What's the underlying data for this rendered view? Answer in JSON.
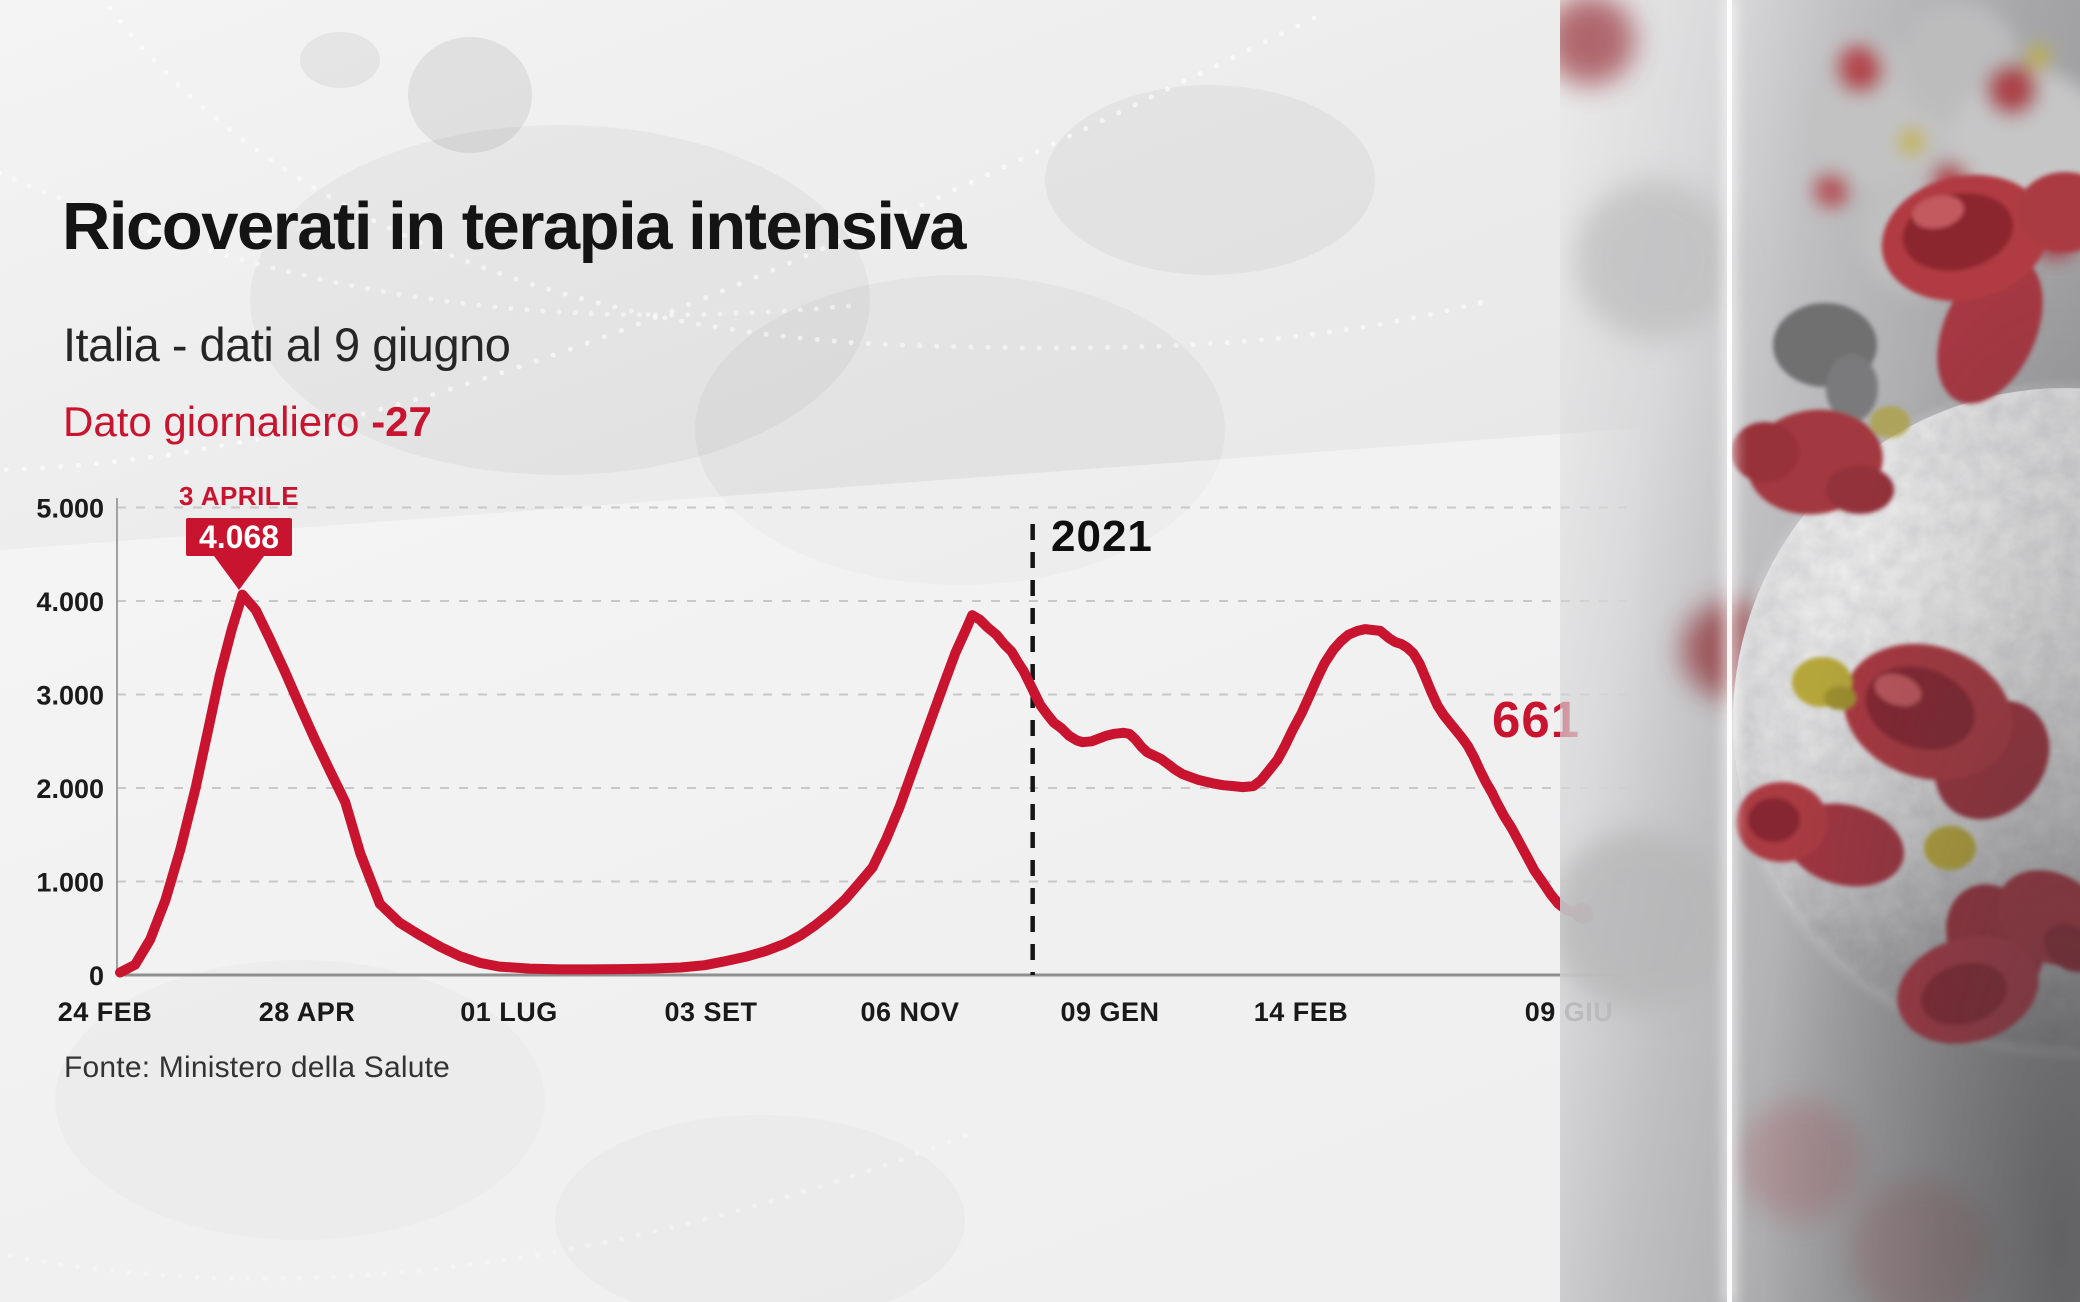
{
  "header": {
    "title": "Ricoverati in terapia intensiva",
    "subtitle": "Italia - dati al 9 giugno",
    "daily_label": "Dato giornaliero",
    "daily_value": "-27"
  },
  "footer": {
    "source": "Fonte: Ministero della Salute"
  },
  "colors": {
    "red": "#C9142F",
    "text_dark": "#141414",
    "grid": "#c8c8c8",
    "axis": "#8f8f8f"
  },
  "decor": {
    "virus_image_name": "coronavirus-3d-render",
    "background_map_name": "world-map-watermark",
    "background_lines_name": "dotted-network-arcs"
  },
  "chart_data": {
    "type": "line",
    "title": "Ricoverati in terapia intensiva",
    "xlabel": "",
    "ylabel": "",
    "ylim": [
      0,
      5000
    ],
    "grid": "dashed-horizontal",
    "legend_position": "none",
    "y_tick_labels": [
      "0",
      "1.000",
      "2.000",
      "3.000",
      "4.000",
      "5.000"
    ],
    "y_tick_values": [
      0,
      1000,
      2000,
      3000,
      4000,
      5000
    ],
    "x_tick_labels": [
      "24 FEB",
      "28 APR",
      "01 LUG",
      "03 SET",
      "06 NOV",
      "09 GEN",
      "14 FEB",
      "09 GIU"
    ],
    "annotations": {
      "peak_date_label": "3 APRILE",
      "peak_value_label": "4.068",
      "peak_value": 4068,
      "year_divider_label": "2021",
      "year_divider_x_frac": 0.606,
      "last_value_label": "661",
      "last_value": 661,
      "last_date_label": "09 GIU"
    },
    "series": [
      {
        "name": "Ricoverati in terapia intensiva - Italia",
        "color": "#C9142F",
        "points": [
          [
            0.002,
            27
          ],
          [
            0.012,
            110
          ],
          [
            0.022,
            380
          ],
          [
            0.032,
            800
          ],
          [
            0.042,
            1350
          ],
          [
            0.052,
            2000
          ],
          [
            0.06,
            2600
          ],
          [
            0.068,
            3200
          ],
          [
            0.076,
            3700
          ],
          [
            0.083,
            4068
          ],
          [
            0.092,
            3900
          ],
          [
            0.101,
            3600
          ],
          [
            0.111,
            3250
          ],
          [
            0.121,
            2880
          ],
          [
            0.131,
            2520
          ],
          [
            0.141,
            2180
          ],
          [
            0.151,
            1850
          ],
          [
            0.161,
            1300
          ],
          [
            0.174,
            760
          ],
          [
            0.187,
            560
          ],
          [
            0.201,
            420
          ],
          [
            0.214,
            300
          ],
          [
            0.227,
            200
          ],
          [
            0.24,
            130
          ],
          [
            0.253,
            90
          ],
          [
            0.273,
            68
          ],
          [
            0.293,
            60
          ],
          [
            0.313,
            60
          ],
          [
            0.333,
            63
          ],
          [
            0.353,
            68
          ],
          [
            0.373,
            80
          ],
          [
            0.389,
            105
          ],
          [
            0.402,
            145
          ],
          [
            0.416,
            195
          ],
          [
            0.429,
            255
          ],
          [
            0.442,
            335
          ],
          [
            0.452,
            420
          ],
          [
            0.462,
            530
          ],
          [
            0.472,
            660
          ],
          [
            0.482,
            810
          ],
          [
            0.49,
            960
          ],
          [
            0.5,
            1150
          ],
          [
            0.509,
            1450
          ],
          [
            0.518,
            1800
          ],
          [
            0.528,
            2250
          ],
          [
            0.538,
            2700
          ],
          [
            0.547,
            3100
          ],
          [
            0.555,
            3450
          ],
          [
            0.562,
            3700
          ],
          [
            0.566,
            3848
          ],
          [
            0.571,
            3800
          ],
          [
            0.576,
            3720
          ],
          [
            0.582,
            3640
          ],
          [
            0.587,
            3540
          ],
          [
            0.592,
            3460
          ],
          [
            0.596,
            3350
          ],
          [
            0.6,
            3250
          ],
          [
            0.604,
            3120
          ],
          [
            0.607,
            3020
          ],
          [
            0.611,
            2890
          ],
          [
            0.615,
            2800
          ],
          [
            0.62,
            2700
          ],
          [
            0.625,
            2640
          ],
          [
            0.63,
            2560
          ],
          [
            0.635,
            2510
          ],
          [
            0.639,
            2490
          ],
          [
            0.645,
            2500
          ],
          [
            0.65,
            2530
          ],
          [
            0.655,
            2560
          ],
          [
            0.66,
            2580
          ],
          [
            0.666,
            2590
          ],
          [
            0.67,
            2580
          ],
          [
            0.674,
            2520
          ],
          [
            0.678,
            2440
          ],
          [
            0.682,
            2380
          ],
          [
            0.686,
            2350
          ],
          [
            0.691,
            2310
          ],
          [
            0.696,
            2250
          ],
          [
            0.7,
            2200
          ],
          [
            0.705,
            2150
          ],
          [
            0.71,
            2120
          ],
          [
            0.715,
            2090
          ],
          [
            0.72,
            2070
          ],
          [
            0.725,
            2050
          ],
          [
            0.732,
            2030
          ],
          [
            0.739,
            2020
          ],
          [
            0.745,
            2010
          ],
          [
            0.752,
            2020
          ],
          [
            0.757,
            2080
          ],
          [
            0.762,
            2180
          ],
          [
            0.768,
            2300
          ],
          [
            0.773,
            2450
          ],
          [
            0.778,
            2620
          ],
          [
            0.784,
            2800
          ],
          [
            0.789,
            2980
          ],
          [
            0.794,
            3160
          ],
          [
            0.799,
            3330
          ],
          [
            0.805,
            3480
          ],
          [
            0.81,
            3570
          ],
          [
            0.815,
            3640
          ],
          [
            0.821,
            3680
          ],
          [
            0.826,
            3700
          ],
          [
            0.831,
            3690
          ],
          [
            0.836,
            3680
          ],
          [
            0.842,
            3600
          ],
          [
            0.846,
            3560
          ],
          [
            0.85,
            3540
          ],
          [
            0.854,
            3500
          ],
          [
            0.858,
            3440
          ],
          [
            0.862,
            3330
          ],
          [
            0.866,
            3180
          ],
          [
            0.87,
            3020
          ],
          [
            0.874,
            2880
          ],
          [
            0.878,
            2780
          ],
          [
            0.882,
            2700
          ],
          [
            0.886,
            2620
          ],
          [
            0.89,
            2540
          ],
          [
            0.894,
            2450
          ],
          [
            0.898,
            2330
          ],
          [
            0.902,
            2190
          ],
          [
            0.906,
            2060
          ],
          [
            0.91,
            1950
          ],
          [
            0.913,
            1850
          ],
          [
            0.918,
            1700
          ],
          [
            0.923,
            1570
          ],
          [
            0.928,
            1420
          ],
          [
            0.933,
            1270
          ],
          [
            0.938,
            1120
          ],
          [
            0.944,
            980
          ],
          [
            0.949,
            860
          ],
          [
            0.954,
            760
          ],
          [
            0.959,
            700
          ],
          [
            0.965,
            670
          ],
          [
            0.97,
            661
          ]
        ]
      }
    ]
  }
}
